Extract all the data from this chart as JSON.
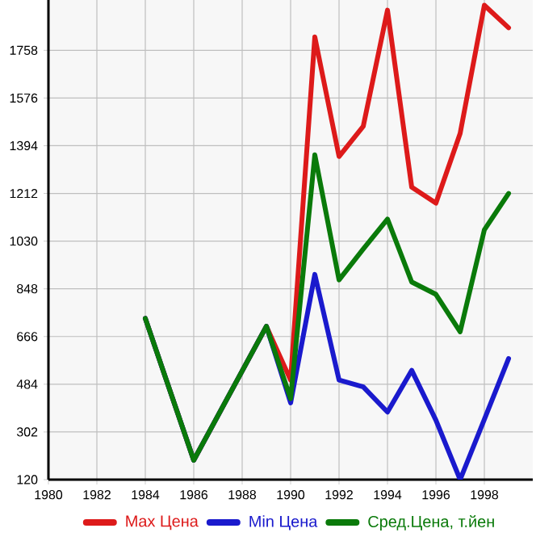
{
  "chart_data": {
    "type": "line",
    "x": [
      1984,
      1986,
      1989,
      1990,
      1991,
      1992,
      1993,
      1994,
      1995,
      1996,
      1997,
      1998,
      1999
    ],
    "series": [
      {
        "name": "Max Цена",
        "color": "#dd1a1a",
        "values": [
          735,
          194,
          705,
          500,
          1809,
          1353,
          1468,
          1911,
          1236,
          1175,
          1441,
          1930,
          1844
        ]
      },
      {
        "name": "Min Цена",
        "color": "#1a1acd",
        "values": [
          735,
          194,
          705,
          413,
          903,
          500,
          474,
          378,
          537,
          347,
          120,
          350,
          582
        ]
      },
      {
        "name": "Сред.Цена, т.йен",
        "color": "#0a7a0a",
        "values": [
          735,
          194,
          705,
          429,
          1359,
          882,
          1000,
          1114,
          874,
          827,
          684,
          1073,
          1212
        ]
      }
    ],
    "xlim": [
      1980,
      2000
    ],
    "ylim": [
      120,
      1950
    ],
    "xticks": [
      1980,
      1982,
      1984,
      1986,
      1988,
      1990,
      1992,
      1994,
      1996,
      1998
    ],
    "yticks": [
      120,
      302,
      484,
      666,
      848,
      1030,
      1212,
      1394,
      1576,
      1758
    ],
    "grid": true,
    "legend": "bottom",
    "marker": "none",
    "line_style": "solid"
  }
}
